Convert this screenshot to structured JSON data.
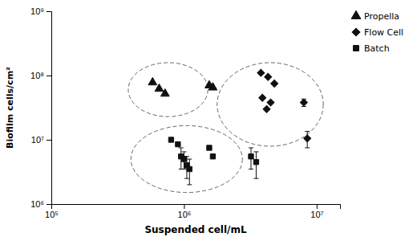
{
  "chart_data": {
    "type": "scatter",
    "xlabel": "Suspended cell/mL",
    "ylabel": "Biofilm cells/cm²",
    "log": true,
    "legend": "right",
    "xlim": [
      100000.0,
      15000000.0
    ],
    "ylim": [
      1000000.0,
      1000000000.0
    ],
    "xticks": [
      {
        "value": 100000.0,
        "label": "10⁵"
      },
      {
        "value": 1000000.0,
        "label": "10⁶"
      },
      {
        "value": 10000000.0,
        "label": "10⁷"
      }
    ],
    "yticks": [
      {
        "value": 1000000.0,
        "label": "10⁶"
      },
      {
        "value": 10000000.0,
        "label": "10⁷"
      },
      {
        "value": 100000000.0,
        "label": "10⁸"
      },
      {
        "value": 1000000000.0,
        "label": "10⁹"
      }
    ],
    "series": [
      {
        "name": "Propella",
        "marker": "triangle",
        "color": "#111111",
        "x": [
          580000.0,
          650000.0,
          720000.0,
          1550000.0,
          1650000.0
        ],
        "values": [
          78000000.0,
          62000000.0,
          52000000.0,
          70000000.0,
          65000000.0
        ]
      },
      {
        "name": "Flow Cell",
        "marker": "diamond",
        "color": "#111111",
        "x": [
          3800000.0,
          4300000.0,
          4800000.0,
          3900000.0,
          4500000.0,
          4200000.0,
          8000000.0,
          8500000.0
        ],
        "values": [
          110000000.0,
          95000000.0,
          75000000.0,
          45000000.0,
          38000000.0,
          30000000.0,
          38000000.0,
          10500000.0
        ],
        "errors": [
          0,
          0,
          0,
          0,
          0,
          0,
          5000000.0,
          3000000.0
        ]
      },
      {
        "name": "Batch",
        "marker": "square",
        "color": "#111111",
        "x": [
          800000.0,
          900000.0,
          950000.0,
          1000000.0,
          1050000.0,
          1100000.0,
          1550000.0,
          1650000.0,
          3200000.0,
          3500000.0
        ],
        "values": [
          10000000.0,
          8500000.0,
          5500000.0,
          5000000.0,
          4000000.0,
          3500000.0,
          7500000.0,
          5500000.0,
          5500000.0,
          4500000.0
        ],
        "errors": [
          0,
          0,
          2000000.0,
          1500000.0,
          1500000.0,
          1500000.0,
          0,
          0,
          2000000.0,
          2000000.0
        ]
      }
    ],
    "ellipses": [
      {
        "center_log10": [
          5.88,
          7.78
        ],
        "radius_log10": [
          0.3,
          0.42
        ],
        "color": "#666666",
        "line_style": "dashed"
      },
      {
        "center_log10": [
          6.02,
          6.7
        ],
        "radius_log10": [
          0.42,
          0.52
        ],
        "color": "#666666",
        "line_style": "dashed"
      },
      {
        "center_log10": [
          6.65,
          7.55
        ],
        "radius_log10": [
          0.4,
          0.65
        ],
        "color": "#666666",
        "line_style": "dashed"
      }
    ]
  }
}
